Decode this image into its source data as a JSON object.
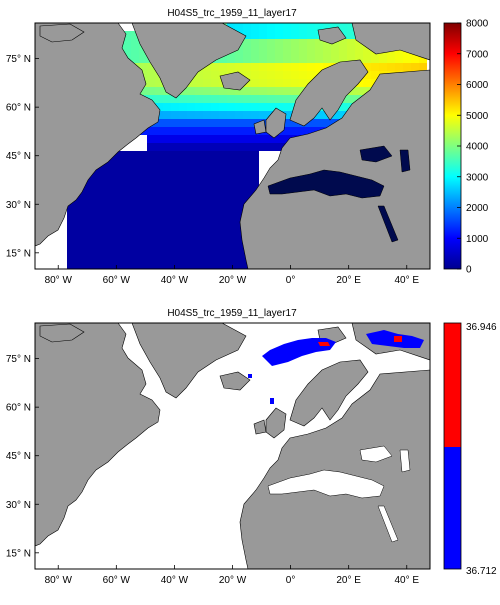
{
  "top_map": {
    "title": "H04S5_trc_1959_11_layer17",
    "lat_labels": [
      {
        "value": 75,
        "label": "75° N"
      },
      {
        "value": 60,
        "label": "60° N"
      },
      {
        "value": 45,
        "label": "45° N"
      },
      {
        "value": 30,
        "label": "30° N"
      },
      {
        "value": 15,
        "label": "15° N"
      }
    ],
    "lon_labels": [
      {
        "value": -80,
        "label": "80° W"
      },
      {
        "value": -60,
        "label": "60° W"
      },
      {
        "value": -40,
        "label": "40° W"
      },
      {
        "value": -20,
        "label": "20° W"
      },
      {
        "value": 0,
        "label": "0°"
      },
      {
        "value": 20,
        "label": "20° E"
      },
      {
        "value": 40,
        "label": "40° E"
      }
    ],
    "colorbar": {
      "min": 0,
      "max": 8000,
      "ticks": [
        "0",
        "1000",
        "2000",
        "3000",
        "4000",
        "5000",
        "6000",
        "7000",
        "8000"
      ],
      "colormap": "jet"
    }
  },
  "bottom_map": {
    "title": "H04S5_trc_1959_11_layer17",
    "lat_labels": [
      {
        "value": 75,
        "label": "75° N"
      },
      {
        "value": 60,
        "label": "60° N"
      },
      {
        "value": 45,
        "label": "45° N"
      },
      {
        "value": 30,
        "label": "30° N"
      },
      {
        "value": 15,
        "label": "15° N"
      }
    ],
    "lon_labels": [
      {
        "value": -80,
        "label": "80° W"
      },
      {
        "value": -60,
        "label": "60° W"
      },
      {
        "value": -40,
        "label": "40° W"
      },
      {
        "value": -20,
        "label": "20° W"
      },
      {
        "value": 0,
        "label": "0°"
      },
      {
        "value": 20,
        "label": "20° E"
      },
      {
        "value": 40,
        "label": "40° E"
      }
    ],
    "colorbar": {
      "top_label": "36.946",
      "bottom_label": "36.712",
      "upper_color": "#ff0000",
      "lower_color": "#0000ff"
    }
  },
  "colors": {
    "land": "#999999",
    "frame": "#000000",
    "ocean_empty": "#ffffff",
    "deep_navy": "#000a4e"
  }
}
